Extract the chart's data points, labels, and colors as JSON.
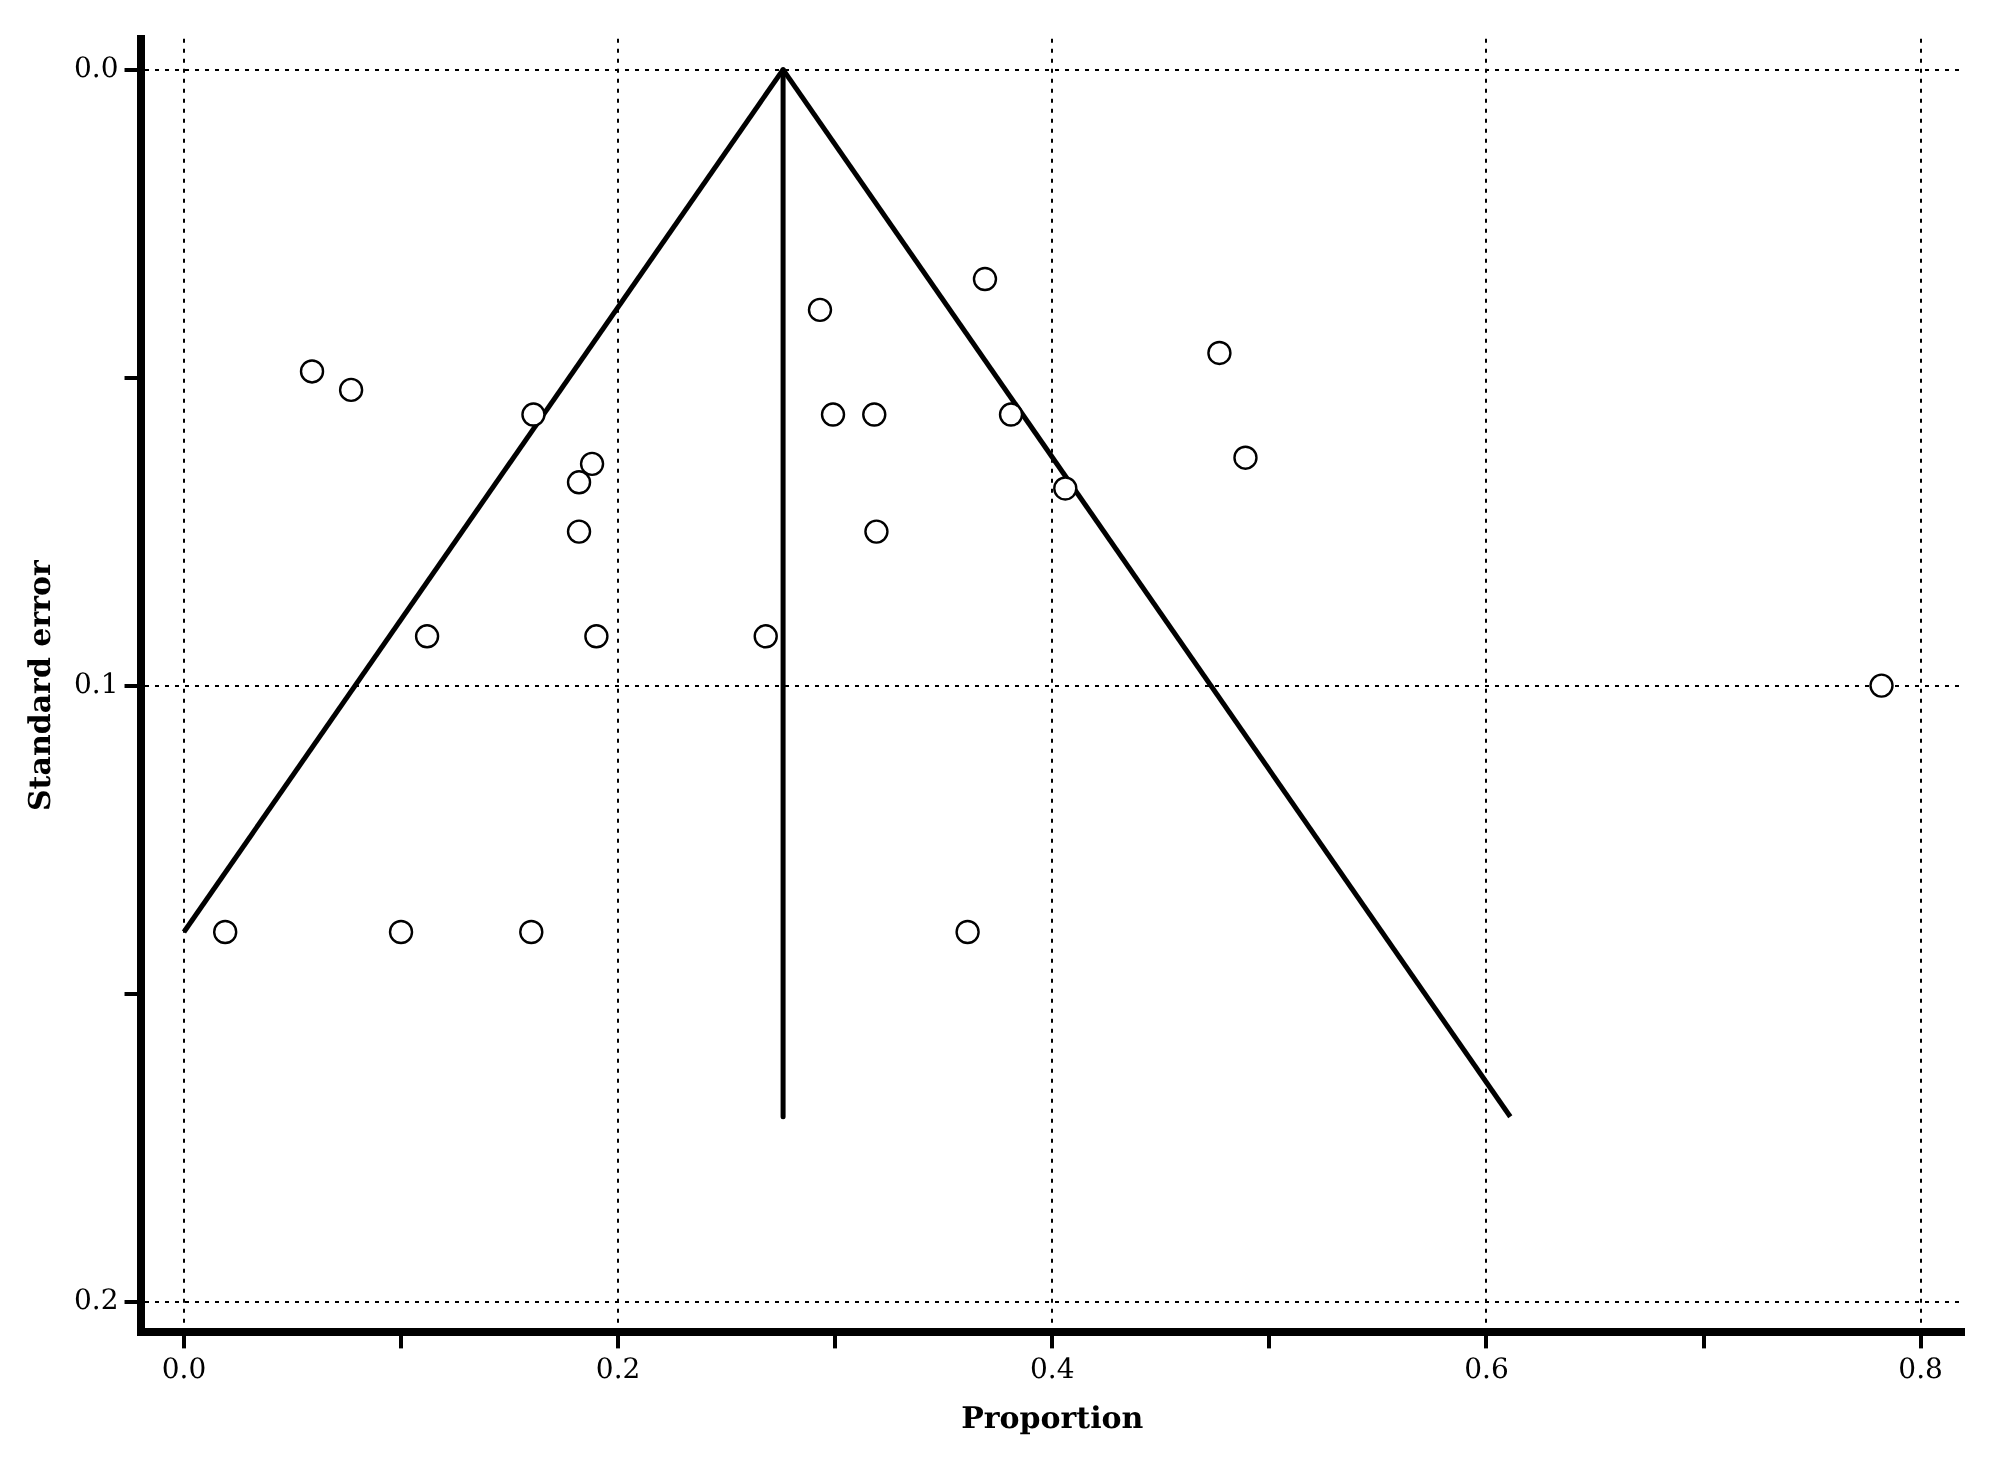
{
  "chart_data": {
    "type": "scatter",
    "xlabel": "Proportion",
    "ylabel": "Standard error",
    "xlim": [
      -0.02,
      0.82
    ],
    "ylim": [
      0.205,
      -0.005
    ],
    "xticks": [
      {
        "value": 0,
        "label": "0.0"
      },
      {
        "value": 0.1,
        "label": null
      },
      0.2,
      {
        "value": 0.3,
        "label": null
      },
      0.4,
      {
        "value": 0.5,
        "label": null
      },
      0.6,
      {
        "value": 0.7,
        "label": null
      },
      0.8
    ],
    "yticks": [
      {
        "value": 0,
        "label": "0.0"
      },
      {
        "value": 0.05,
        "label": null
      },
      0.1,
      {
        "value": 0.15,
        "label": null
      },
      0.2
    ],
    "grid": true,
    "legend": false,
    "series": [
      {
        "marker": "circle",
        "color": "#000000",
        "x": [
          0.059,
          0.077,
          0.161,
          0.188,
          0.182,
          0.182,
          0.112,
          0.19,
          0.268,
          0.293,
          0.299,
          0.318,
          0.319,
          0.369,
          0.381,
          0.406,
          0.477,
          0.489,
          0.782,
          0.019,
          0.1,
          0.16,
          0.361
        ],
        "values": [
          0.049,
          0.052,
          0.056,
          0.064,
          0.067,
          0.075,
          0.092,
          0.092,
          0.092,
          0.039,
          0.056,
          0.056,
          0.075,
          0.034,
          0.056,
          0.068,
          0.046,
          0.063,
          0.1,
          0.14,
          0.14,
          0.14,
          0.14
        ]
      },
      {
        "type": "line",
        "color": "#000000",
        "x": [
          0.0,
          0.276
        ],
        "values": [
          0.14,
          0.0
        ]
      },
      {
        "type": "line",
        "color": "#000000",
        "x": [
          0.276,
          0.611
        ],
        "values": [
          0.0,
          0.17
        ]
      },
      {
        "type": "line",
        "color": "#000000",
        "x": [
          0.276,
          0.276
        ],
        "values": [
          0.0,
          0.17
        ]
      }
    ]
  }
}
